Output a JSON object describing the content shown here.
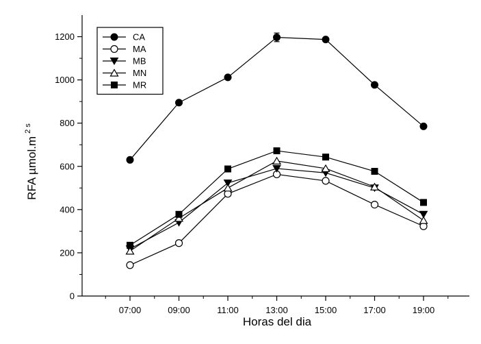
{
  "chart_data": {
    "type": "line",
    "title": "",
    "xlabel": "Horas del dia",
    "ylabel_main": "RFA µmol.m",
    "ylabel_sup": "2 s",
    "categories": [
      "07:00",
      "09:00",
      "11:00",
      "13:00",
      "15:00",
      "17:00",
      "19:00"
    ],
    "ylim": [
      0,
      1300
    ],
    "yticks": [
      0,
      200,
      400,
      600,
      800,
      1000,
      1200
    ],
    "grid": false,
    "legend_position": "top-left",
    "series": [
      {
        "name": "CA",
        "marker": "circle-filled",
        "values": [
          630,
          895,
          1012,
          1197,
          1187,
          977,
          785
        ],
        "errors": [
          0,
          0,
          0,
          20,
          10,
          0,
          0
        ]
      },
      {
        "name": "MA",
        "marker": "circle-open",
        "values": [
          143,
          245,
          473,
          563,
          533,
          423,
          323
        ],
        "errors": [
          0,
          0,
          0,
          0,
          0,
          0,
          0
        ]
      },
      {
        "name": "MB",
        "marker": "triangle-down-filled",
        "values": [
          218,
          340,
          523,
          590,
          570,
          500,
          378
        ],
        "errors": [
          0,
          0,
          0,
          0,
          0,
          0,
          0
        ]
      },
      {
        "name": "MN",
        "marker": "triangle-up-open",
        "values": [
          208,
          360,
          500,
          625,
          590,
          505,
          350
        ],
        "errors": [
          0,
          0,
          0,
          0,
          0,
          0,
          0
        ]
      },
      {
        "name": "MR",
        "marker": "square-filled",
        "values": [
          235,
          378,
          588,
          672,
          643,
          577,
          433
        ],
        "errors": [
          0,
          0,
          0,
          0,
          0,
          0,
          0
        ]
      }
    ]
  }
}
